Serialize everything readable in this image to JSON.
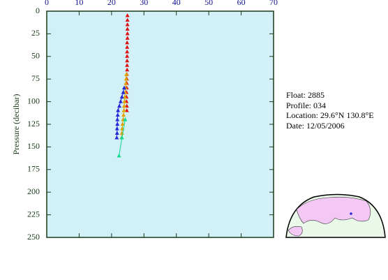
{
  "chart_data": {
    "type": "scatter",
    "ylabel": "Pressure (decibar)",
    "xlim": [
      0,
      70
    ],
    "xticks": [
      0,
      10,
      20,
      30,
      40,
      50,
      60,
      70
    ],
    "ylim": [
      0,
      250
    ],
    "yticks": [
      0,
      25,
      50,
      75,
      100,
      125,
      150,
      175,
      200,
      225,
      250
    ],
    "y_inverted": true,
    "series": [
      {
        "color": "#e01010",
        "line": false,
        "x": [
          24.9,
          24.9,
          24.9,
          24.9,
          24.9,
          24.9,
          24.8,
          24.8,
          24.8,
          24.8,
          24.8,
          24.8,
          24.8,
          24.7,
          24.7,
          24.7,
          24.7,
          24.6,
          24.6,
          24.6,
          24.7,
          24.7
        ],
        "y": [
          5,
          10,
          15,
          20,
          25,
          30,
          35,
          40,
          45,
          50,
          55,
          60,
          65,
          70,
          75,
          80,
          85,
          90,
          95,
          100,
          105,
          110
        ]
      },
      {
        "color": "#e0a000",
        "line": true,
        "x": [
          24.6,
          24.5,
          24.4,
          24.3,
          24.2,
          24.1,
          24.0,
          23.9,
          23.8,
          23.7,
          23.6,
          23.4,
          23.3,
          23.2,
          23.1
        ],
        "y": [
          70,
          75,
          80,
          85,
          90,
          95,
          100,
          105,
          110,
          115,
          120,
          125,
          130,
          135,
          140
        ]
      },
      {
        "color": "#2828d8",
        "line": true,
        "x": [
          23.9,
          23.6,
          23.2,
          22.8,
          22.4,
          22.0,
          21.9,
          21.8,
          21.8,
          21.7,
          21.7,
          21.6
        ],
        "y": [
          85,
          90,
          95,
          100,
          105,
          110,
          115,
          120,
          125,
          130,
          135,
          140
        ]
      },
      {
        "color": "#10d890",
        "line": true,
        "x": [
          24.2,
          23.2,
          22.3
        ],
        "y": [
          120,
          140,
          160
        ]
      }
    ]
  },
  "info": {
    "float": "Float:  2885",
    "profile": "Profile:  034",
    "location": "Location:  29.6°N  130.8°E",
    "date": "Date:  12/05/2006"
  }
}
